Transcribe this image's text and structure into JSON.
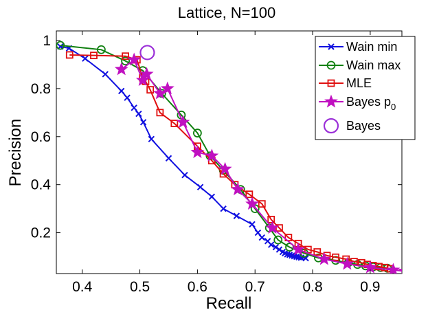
{
  "chart_data": {
    "type": "line",
    "title": "Lattice, N=100",
    "xlabel": "Recall",
    "ylabel": "Precision",
    "xlim": [
      0.355,
      0.955
    ],
    "ylim": [
      0.03,
      1.04
    ],
    "xticks": [
      0.4,
      0.5,
      0.6,
      0.7,
      0.8,
      0.9
    ],
    "xtick_labels": [
      "0.4",
      "0.5",
      "0.6",
      "0.7",
      "0.8",
      "0.9"
    ],
    "yticks": [
      0.2,
      0.4,
      0.6,
      0.8,
      1.0
    ],
    "ytick_labels": [
      "0.2",
      "0.4",
      "0.6",
      "0.8",
      "1"
    ],
    "grid": false,
    "legend_position": "top-right",
    "series": [
      {
        "name": "Wain min",
        "color": "#1010e0",
        "marker": "x",
        "x": [
          0.362,
          0.377,
          0.405,
          0.44,
          0.468,
          0.478,
          0.49,
          0.498,
          0.506,
          0.52,
          0.55,
          0.578,
          0.605,
          0.625,
          0.645,
          0.668,
          0.695,
          0.705,
          0.712,
          0.722,
          0.728,
          0.736,
          0.742,
          0.748,
          0.752,
          0.756,
          0.76,
          0.764,
          0.768,
          0.772,
          0.776,
          0.78,
          0.788
        ],
        "y": [
          0.975,
          0.968,
          0.925,
          0.86,
          0.79,
          0.762,
          0.72,
          0.695,
          0.66,
          0.59,
          0.51,
          0.44,
          0.39,
          0.35,
          0.3,
          0.27,
          0.235,
          0.2,
          0.18,
          0.165,
          0.15,
          0.14,
          0.13,
          0.12,
          0.115,
          0.11,
          0.108,
          0.105,
          0.102,
          0.1,
          0.098,
          0.096,
          0.094
        ]
      },
      {
        "name": "Wain max",
        "color": "#108010",
        "marker": "o",
        "x": [
          0.362,
          0.433,
          0.475,
          0.505,
          0.538,
          0.572,
          0.6,
          0.622,
          0.645,
          0.675,
          0.7,
          0.725,
          0.74,
          0.76,
          0.785,
          0.81,
          0.84,
          0.862,
          0.878,
          0.892,
          0.905,
          0.918,
          0.93
        ],
        "y": [
          0.98,
          0.962,
          0.915,
          0.875,
          0.78,
          0.69,
          0.615,
          0.52,
          0.46,
          0.38,
          0.3,
          0.22,
          0.17,
          0.14,
          0.115,
          0.095,
          0.085,
          0.075,
          0.068,
          0.062,
          0.058,
          0.055,
          0.052
        ]
      },
      {
        "name": "MLE",
        "color": "#e01010",
        "marker": "s",
        "x": [
          0.378,
          0.42,
          0.475,
          0.495,
          0.505,
          0.51,
          0.518,
          0.535,
          0.56,
          0.6,
          0.625,
          0.645,
          0.665,
          0.69,
          0.712,
          0.728,
          0.742,
          0.758,
          0.775,
          0.792,
          0.808,
          0.825,
          0.84,
          0.858,
          0.872,
          0.885,
          0.895,
          0.905,
          0.915,
          0.925,
          0.935
        ],
        "y": [
          0.94,
          0.938,
          0.935,
          0.92,
          0.845,
          0.83,
          0.795,
          0.7,
          0.655,
          0.56,
          0.5,
          0.445,
          0.4,
          0.36,
          0.32,
          0.255,
          0.22,
          0.18,
          0.155,
          0.13,
          0.12,
          0.105,
          0.098,
          0.09,
          0.08,
          0.075,
          0.068,
          0.063,
          0.059,
          0.055,
          0.05
        ]
      },
      {
        "name": "Bayes p",
        "name_subscript": "0",
        "color": "#c010c0",
        "marker": "pentagram",
        "x": [
          0.468,
          0.49,
          0.505,
          0.512,
          0.535,
          0.548,
          0.575,
          0.6,
          0.625,
          0.648,
          0.67,
          0.695,
          0.73,
          0.775,
          0.82,
          0.86,
          0.9,
          0.94,
          0.96
        ],
        "y": [
          0.88,
          0.92,
          0.835,
          0.86,
          0.78,
          0.8,
          0.66,
          0.535,
          0.52,
          0.465,
          0.38,
          0.32,
          0.22,
          0.13,
          0.09,
          0.07,
          0.055,
          0.045,
          0.04
        ]
      },
      {
        "name": "Bayes",
        "color": "#9b30d8",
        "marker": "O",
        "x": [
          0.513
        ],
        "y": [
          0.95
        ]
      }
    ]
  }
}
